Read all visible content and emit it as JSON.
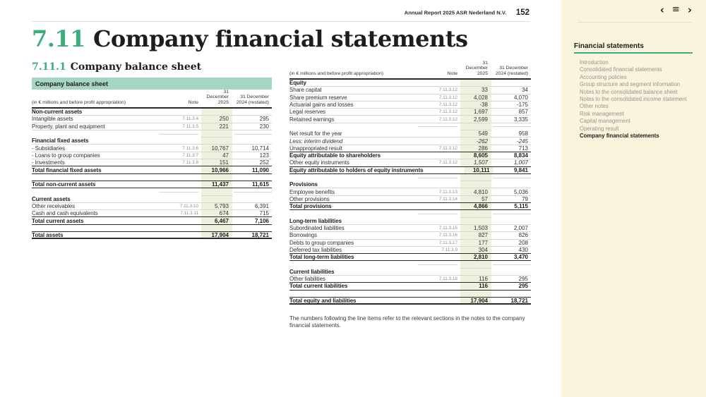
{
  "colors": {
    "accent_green": "#3cae7d",
    "caption_bg": "#a5d6bf",
    "highlight_column_bg": "#edf1de",
    "sidebar_bg": "#faf4df",
    "text_dark": "#1d1d1b",
    "note_gray": "#8d8d84"
  },
  "top_bar": {
    "report_title": "Annual Report 2025 ASR Nederland N.V.",
    "page_number": "152"
  },
  "heading": {
    "number": "7.11",
    "title": "Company financial statements"
  },
  "subheading": {
    "number": "7.11.1",
    "title": "Company balance sheet"
  },
  "table_caption": "Company balance sheet",
  "column_headers": {
    "desc": "(in € millions and before profit appropriation)",
    "note": "Note",
    "y2025_line1": "31 December",
    "y2025_line2": "2025",
    "y2024_line1": "31 December",
    "y2024_line2": "2024 (restated)"
  },
  "left_table": {
    "rows": [
      {
        "t": "section",
        "label": "Non-current assets",
        "bb": "light"
      },
      {
        "t": "item",
        "label": "Intangible assets",
        "note": "7.11.3.4",
        "v2025": "250",
        "v2024": "295",
        "bb": "light"
      },
      {
        "t": "item",
        "label": "Property, plant and equipment",
        "note": "7.11.3.5",
        "v2025": "221",
        "v2024": "230",
        "bb": "light"
      },
      {
        "t": "blank",
        "bb": "light"
      },
      {
        "t": "section",
        "label": "Financial fixed assets",
        "bb": "light"
      },
      {
        "t": "item",
        "label": "- Subsidiaries",
        "note": "7.11.3.6",
        "v2025": "10,767",
        "v2024": "10,714",
        "bb": "light"
      },
      {
        "t": "item",
        "label": "- Loans to group companies",
        "note": "7.11.3.7",
        "v2025": "47",
        "v2024": "123",
        "bb": "light"
      },
      {
        "t": "item",
        "label": "- Investments",
        "note": "7.11.3.8",
        "v2025": "151",
        "v2024": "252",
        "bb": "dark"
      },
      {
        "t": "total",
        "label": "Total financial fixed assets",
        "v2025": "10,966",
        "v2024": "11,090",
        "bb": "dark"
      },
      {
        "t": "blank",
        "bb": "dark"
      },
      {
        "t": "total",
        "label": "Total non-current assets",
        "v2025": "11,437",
        "v2024": "11,615",
        "bb": "dark"
      },
      {
        "t": "blank",
        "bb": "light"
      },
      {
        "t": "section",
        "label": "Current assets",
        "bb": "light"
      },
      {
        "t": "item",
        "label": "Other receivables",
        "note": "7.11.3.10",
        "v2025": "5,793",
        "v2024": "6,391",
        "bb": "light"
      },
      {
        "t": "item",
        "label": "Cash and cash equivalents",
        "note": "7.11.3.11",
        "v2025": "674",
        "v2024": "715",
        "bb": "dark"
      },
      {
        "t": "total",
        "label": "Total current assets",
        "v2025": "6,467",
        "v2024": "7,106",
        "bb": "dark"
      },
      {
        "t": "blank",
        "bb": "dark"
      },
      {
        "t": "total",
        "label": "Total assets",
        "v2025": "17,904",
        "v2024": "18,721",
        "bb": "dark2"
      }
    ]
  },
  "right_table": {
    "rows": [
      {
        "t": "section",
        "label": "Equity",
        "bb": "light"
      },
      {
        "t": "item",
        "label": "Share capital",
        "note": "7.11.3.12",
        "v2025": "33",
        "v2024": "34",
        "bb": "light"
      },
      {
        "t": "item",
        "label": "Share premium reserve",
        "note": "7.11.3.12",
        "v2025": "4,028",
        "v2024": "4,070",
        "bb": "light"
      },
      {
        "t": "item",
        "label": "Actuarial gains and losses",
        "note": "7.11.3.12",
        "v2025": "-38",
        "v2024": "-175",
        "bb": "light"
      },
      {
        "t": "item",
        "label": "Legal reserves",
        "note": "7.11.3.12",
        "v2025": "1,697",
        "v2024": "857",
        "bb": "light"
      },
      {
        "t": "item",
        "label": "Retained earnings",
        "note": "7.11.3.12",
        "v2025": "2,599",
        "v2024": "3,335",
        "bb": "light"
      },
      {
        "t": "blank",
        "bb": "light"
      },
      {
        "t": "item",
        "label": "Net result for the year",
        "v2025": "549",
        "v2024": "958",
        "bb": "light"
      },
      {
        "t": "item",
        "label": "Less: interim dividend",
        "v2025": "-262",
        "v2024": "-245",
        "bb": "light",
        "italic": true
      },
      {
        "t": "item",
        "label": "Unappropriated result",
        "note": "7.11.3.12",
        "v2025": "286",
        "v2024": "713",
        "bb": "dark"
      },
      {
        "t": "total",
        "label": "Equity attributable to shareholders",
        "v2025": "8,605",
        "v2024": "8,834",
        "bb": "light"
      },
      {
        "t": "item",
        "label": "Other equity instruments",
        "note": "7.11.3.12",
        "v2025": "1,507",
        "v2024": "1,007",
        "bb": "dark",
        "italic_values": true
      },
      {
        "t": "total",
        "label": "Equity attributable to holders of equity instruments",
        "v2025": "10,111",
        "v2024": "9,841",
        "bb": "dark"
      },
      {
        "t": "blank",
        "bb": "light"
      },
      {
        "t": "section",
        "label": "Provisions",
        "bb": "light"
      },
      {
        "t": "item",
        "label": "Employee benefits",
        "note": "7.11.3.13",
        "v2025": "4,810",
        "v2024": "5,036",
        "bb": "light"
      },
      {
        "t": "item",
        "label": "Other provisions",
        "note": "7.11.3.14",
        "v2025": "57",
        "v2024": "79",
        "bb": "dark"
      },
      {
        "t": "total",
        "label": "Total provisions",
        "v2025": "4,866",
        "v2024": "5,115",
        "bb": "dark"
      },
      {
        "t": "blank",
        "bb": "light"
      },
      {
        "t": "section",
        "label": "Long-term liabilities",
        "bb": "light"
      },
      {
        "t": "item",
        "label": "Subordinated liabilities",
        "note": "7.11.3.15",
        "v2025": "1,503",
        "v2024": "2,007",
        "bb": "light"
      },
      {
        "t": "item",
        "label": "Borrowings",
        "note": "7.11.3.16",
        "v2025": "827",
        "v2024": "826",
        "bb": "light"
      },
      {
        "t": "item",
        "label": "Debts to group companies",
        "note": "7.11.3.17",
        "v2025": "177",
        "v2024": "208",
        "bb": "light"
      },
      {
        "t": "item",
        "label": "Deferred tax liabilities",
        "note": "7.11.3.9",
        "v2025": "304",
        "v2024": "430",
        "bb": "dark"
      },
      {
        "t": "total",
        "label": "Total long-term liabilities",
        "v2025": "2,810",
        "v2024": "3,470",
        "bb": "dark"
      },
      {
        "t": "blank",
        "bb": "light"
      },
      {
        "t": "section",
        "label": "Current liabilities",
        "bb": "light"
      },
      {
        "t": "item",
        "label": "Other liabilities",
        "note": "7.11.3.18",
        "v2025": "116",
        "v2024": "295",
        "bb": "dark"
      },
      {
        "t": "total",
        "label": "Total current liabilities",
        "v2025": "116",
        "v2024": "295",
        "bb": "dark"
      },
      {
        "t": "blank",
        "bb": "dark"
      },
      {
        "t": "total",
        "label": "Total equity and liabilities",
        "v2025": "17,904",
        "v2024": "18,721",
        "bb": "dark2"
      }
    ]
  },
  "footnote": "The numbers following the line items refer to the relevant sections in the notes to the company financial statements.",
  "sidebar": {
    "title": "Financial statements",
    "icons": {
      "prev": "‹",
      "menu": "≡",
      "next": "›"
    },
    "items": [
      {
        "label": "Introduction",
        "active": false
      },
      {
        "label": "Consolidated financial statements",
        "active": false
      },
      {
        "label": "Accounting policies",
        "active": false
      },
      {
        "label": "Group structure and segment information",
        "active": false
      },
      {
        "label": "Notes to the consolidated balance sheet",
        "active": false
      },
      {
        "label": "Notes to the consolidated income statement",
        "active": false
      },
      {
        "label": "Other notes",
        "active": false
      },
      {
        "label": "Risk management",
        "active": false
      },
      {
        "label": "Capital management",
        "active": false
      },
      {
        "label": "Operating result",
        "active": false
      },
      {
        "label": "Company financial statements",
        "active": true
      }
    ]
  }
}
